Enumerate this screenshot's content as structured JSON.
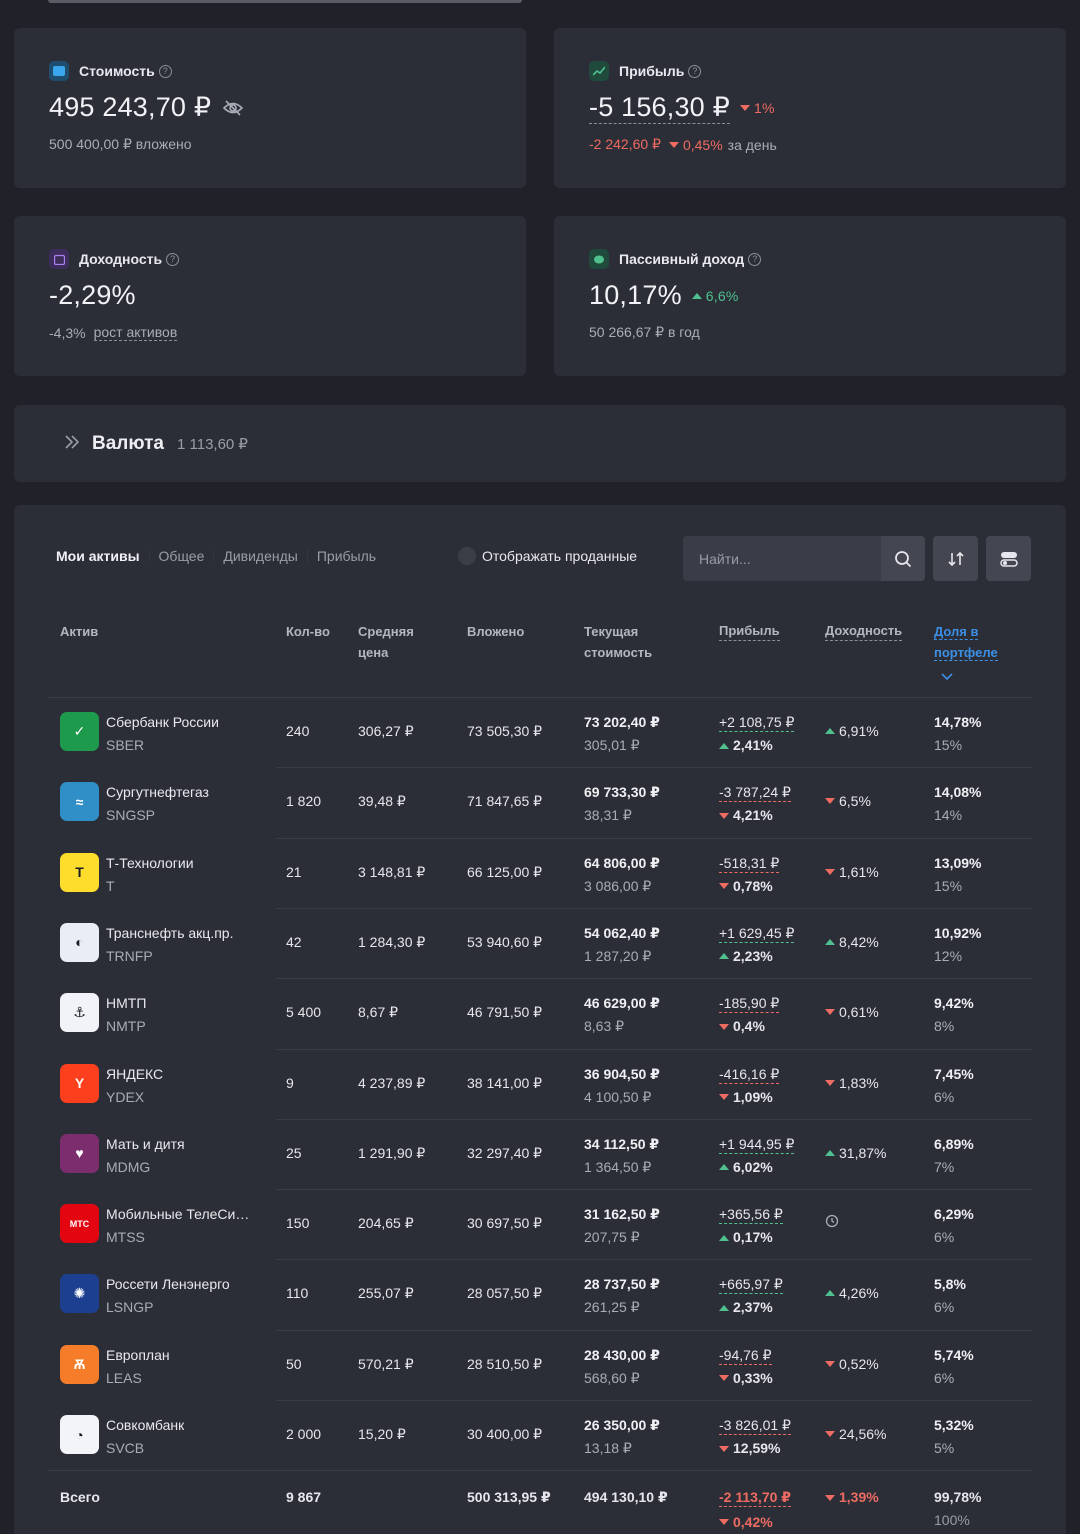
{
  "cards": {
    "value": {
      "label": "Стоимость",
      "amount": "495 243,70 ₽",
      "sub": "500 400,00 ₽ вложено"
    },
    "profit": {
      "label": "Прибыль",
      "amount": "-5 156,30 ₽",
      "change": "1%",
      "day_amount": "-2 242,60 ₽",
      "day_pct": "0,45%",
      "day_suffix": "за день"
    },
    "yield": {
      "label": "Доходность",
      "amount": "-2,29%",
      "sub_pct": "-4,3%",
      "sub_link": "рост активов"
    },
    "passive": {
      "label": "Пассивный доход",
      "amount": "10,17%",
      "change": "6,6%",
      "sub": "50 266,67 ₽ в год"
    }
  },
  "currency": {
    "title": "Валюта",
    "amount": "1 113,60 ₽"
  },
  "tabs": [
    "Мои активы",
    "Общее",
    "Дивиденды",
    "Прибыль"
  ],
  "toggle_label": "Отображать проданные",
  "search": {
    "placeholder": "Найти..."
  },
  "headers": {
    "asset": "Актив",
    "qty": "Кол-во",
    "avg1": "Средняя",
    "avg2": "цена",
    "invested": "Вложено",
    "current1": "Текущая",
    "current2": "стоимость",
    "profit": "Прибыль",
    "yield": "Доходность",
    "share1": "Доля в",
    "share2": "портфеле"
  },
  "rows": [
    {
      "name": "Сбербанк России",
      "ticker": "SBER",
      "qty": "240",
      "avg": "306,27 ₽",
      "invested": "73 505,30 ₽",
      "cur": "73 202,40 ₽",
      "cur_price": "305,01 ₽",
      "profit": "+2 108,75 ₽",
      "profit_pct": "2,41%",
      "dir": "up",
      "yield": "6,91%",
      "ydir": "up",
      "share": "14,78%",
      "target": "15%",
      "logo_bg": "#1e9a4c",
      "logo_text": "✓"
    },
    {
      "name": "Сургутнефтегаз",
      "ticker": "SNGSP",
      "qty": "1 820",
      "avg": "39,48 ₽",
      "invested": "71 847,65 ₽",
      "cur": "69 733,30 ₽",
      "cur_price": "38,31 ₽",
      "profit": "-3 787,24 ₽",
      "profit_pct": "4,21%",
      "dir": "down",
      "yield": "6,5%",
      "ydir": "down",
      "share": "14,08%",
      "target": "14%",
      "logo_bg": "#2f8fc6",
      "logo_text": "≈"
    },
    {
      "name": "Т-Технологии",
      "ticker": "T",
      "qty": "21",
      "avg": "3 148,81 ₽",
      "invested": "66 125,00 ₽",
      "cur": "64 806,00 ₽",
      "cur_price": "3 086,00 ₽",
      "profit": "-518,31 ₽",
      "profit_pct": "0,78%",
      "dir": "down",
      "yield": "1,61%",
      "ydir": "down",
      "share": "13,09%",
      "target": "15%",
      "logo_bg": "#ffdd2d",
      "logo_text": "T"
    },
    {
      "name": "Транснефть акц.пр.",
      "ticker": "TRNFP",
      "qty": "42",
      "avg": "1 284,30 ₽",
      "invested": "53 940,60 ₽",
      "cur": "54 062,40 ₽",
      "cur_price": "1 287,20 ₽",
      "profit": "+1 629,45 ₽",
      "profit_pct": "2,23%",
      "dir": "up",
      "yield": "8,42%",
      "ydir": "up",
      "share": "10,92%",
      "target": "12%",
      "logo_bg": "#e9eef6",
      "logo_text": "◐"
    },
    {
      "name": "НМТП",
      "ticker": "NMTP",
      "qty": "5 400",
      "avg": "8,67 ₽",
      "invested": "46 791,50 ₽",
      "cur": "46 629,00 ₽",
      "cur_price": "8,63 ₽",
      "profit": "-185,90 ₽",
      "profit_pct": "0,4%",
      "dir": "down",
      "yield": "0,61%",
      "ydir": "down",
      "share": "9,42%",
      "target": "8%",
      "logo_bg": "#f1f3f8",
      "logo_text": "⚓"
    },
    {
      "name": "ЯНДЕКС",
      "ticker": "YDEX",
      "qty": "9",
      "avg": "4 237,89 ₽",
      "invested": "38 141,00 ₽",
      "cur": "36 904,50 ₽",
      "cur_price": "4 100,50 ₽",
      "profit": "-416,16 ₽",
      "profit_pct": "1,09%",
      "dir": "down",
      "yield": "1,83%",
      "ydir": "down",
      "share": "7,45%",
      "target": "6%",
      "logo_bg": "#fc3f1d",
      "logo_text": "Y"
    },
    {
      "name": "Мать и дитя",
      "ticker": "MDMG",
      "qty": "25",
      "avg": "1 291,90 ₽",
      "invested": "32 297,40 ₽",
      "cur": "34 112,50 ₽",
      "cur_price": "1 364,50 ₽",
      "profit": "+1 944,95 ₽",
      "profit_pct": "6,02%",
      "dir": "up",
      "yield": "31,87%",
      "ydir": "up",
      "share": "6,89%",
      "target": "7%",
      "logo_bg": "#7b2d6e",
      "logo_text": "♥"
    },
    {
      "name": "Мобильные ТелеСи…",
      "ticker": "MTSS",
      "qty": "150",
      "avg": "204,65 ₽",
      "invested": "30 697,50 ₽",
      "cur": "31 162,50 ₽",
      "cur_price": "207,75 ₽",
      "profit": "+365,56 ₽",
      "profit_pct": "0,17%",
      "dir": "up",
      "yield": "",
      "ydir": "clock",
      "share": "6,29%",
      "target": "6%",
      "logo_bg": "#e30611",
      "logo_text": "МТС"
    },
    {
      "name": "Россети Ленэнерго",
      "ticker": "LSNGP",
      "qty": "110",
      "avg": "255,07 ₽",
      "invested": "28 057,50 ₽",
      "cur": "28 737,50 ₽",
      "cur_price": "261,25 ₽",
      "profit": "+665,97 ₽",
      "profit_pct": "2,37%",
      "dir": "up",
      "yield": "4,26%",
      "ydir": "up",
      "share": "5,8%",
      "target": "6%",
      "logo_bg": "#1c3f8f",
      "logo_text": "✺"
    },
    {
      "name": "Европлан",
      "ticker": "LEAS",
      "qty": "50",
      "avg": "570,21 ₽",
      "invested": "28 510,50 ₽",
      "cur": "28 430,00 ₽",
      "cur_price": "568,60 ₽",
      "profit": "-94,76 ₽",
      "profit_pct": "0,33%",
      "dir": "down",
      "yield": "0,52%",
      "ydir": "down",
      "share": "5,74%",
      "target": "6%",
      "logo_bg": "#f57c28",
      "logo_text": "Ѫ"
    },
    {
      "name": "Совкомбанк",
      "ticker": "SVCB",
      "qty": "2 000",
      "avg": "15,20 ₽",
      "invested": "30 400,00 ₽",
      "cur": "26 350,00 ₽",
      "cur_price": "13,18 ₽",
      "profit": "-3 826,01 ₽",
      "profit_pct": "12,59%",
      "dir": "down",
      "yield": "24,56%",
      "ydir": "down",
      "share": "5,32%",
      "target": "5%",
      "logo_bg": "#f2f4f8",
      "logo_text": "◔"
    }
  ],
  "total": {
    "label": "Всего",
    "qty": "9 867",
    "invested": "500 313,95 ₽",
    "cur": "494 130,10 ₽",
    "profit": "-2 113,70 ₽",
    "profit_pct": "0,42%",
    "yield": "1,39%",
    "share": "99,78%",
    "target": "100%"
  },
  "colors": {
    "bg": "#212229",
    "card": "#2c2e37",
    "red": "#ee6b62",
    "green": "#4fc08e",
    "accent": "#3b8fe5"
  }
}
